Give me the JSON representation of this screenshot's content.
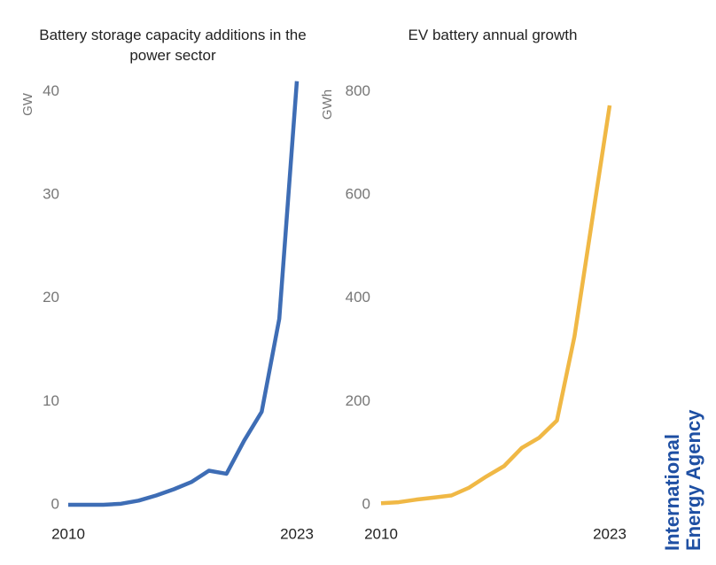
{
  "chart_data": [
    {
      "type": "line",
      "title": "Battery storage capacity additions in the power sector",
      "y_label": "GW",
      "x": [
        2010,
        2011,
        2012,
        2013,
        2014,
        2015,
        2016,
        2017,
        2018,
        2019,
        2020,
        2021,
        2022,
        2023
      ],
      "series": [
        {
          "color": "#3e6db5",
          "values": [
            0,
            0,
            0,
            0.1,
            0.4,
            0.9,
            1.5,
            2.2,
            3.3,
            3,
            6.2,
            9,
            18,
            41
          ]
        }
      ],
      "xlim": [
        2010,
        2023
      ],
      "xticks": [
        2010,
        2023
      ],
      "ylim": [
        0,
        42
      ],
      "yticks": [
        0,
        10,
        20,
        30,
        40
      ],
      "grid": false
    },
    {
      "type": "line",
      "title": "EV battery annual growth",
      "y_label": "GWh",
      "x": [
        2010,
        2011,
        2012,
        2013,
        2014,
        2015,
        2016,
        2017,
        2018,
        2019,
        2020,
        2021,
        2022,
        2023
      ],
      "series": [
        {
          "color": "#f0b845",
          "values": [
            3,
            5,
            10,
            14,
            18,
            33,
            55,
            75,
            110,
            130,
            163,
            326,
            550,
            773
          ]
        }
      ],
      "xlim": [
        2010,
        2023
      ],
      "xticks": [
        2010,
        2023
      ],
      "ylim": [
        0,
        840
      ],
      "yticks": [
        0,
        200,
        400,
        600,
        800
      ],
      "grid": false
    }
  ],
  "logo": [
    "International",
    "Energy Agency"
  ]
}
